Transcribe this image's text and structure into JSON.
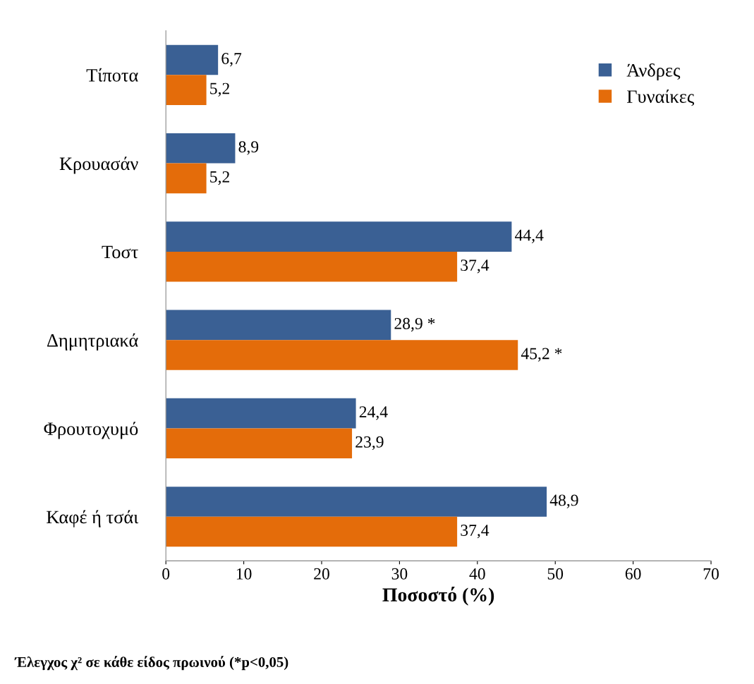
{
  "chart_data": {
    "type": "bar",
    "orientation": "horizontal",
    "xlabel": "Ποσοστό (%)",
    "categories": [
      "Τίποτα",
      "Κρουασάν",
      "Τοστ",
      "Δημητριακά",
      "Φρουτοχυμό",
      "Καφέ ή τσάι"
    ],
    "series": [
      {
        "name": "Άνδρες",
        "color": "#3a6094",
        "values": [
          6.7,
          8.9,
          44.4,
          28.9,
          24.4,
          48.9
        ],
        "value_labels": [
          "6,7",
          "8,9",
          "44,4",
          "28,9 *",
          "24,4",
          "48,9"
        ]
      },
      {
        "name": "Γυναίκες",
        "color": "#e46c0a",
        "values": [
          5.2,
          5.2,
          37.4,
          45.2,
          23.9,
          37.4
        ],
        "value_labels": [
          "5,2",
          "5,2",
          "37,4",
          "45,2 *",
          "23,9",
          "37,4"
        ]
      }
    ],
    "xlim": [
      0,
      70
    ],
    "xticks": [
      0,
      10,
      20,
      30,
      40,
      50,
      60,
      70
    ],
    "grid": false,
    "legend": "top right",
    "annotations": [
      "Έλεγχος χ² σε κάθε είδος πρωινού (*p<0,05)"
    ]
  }
}
